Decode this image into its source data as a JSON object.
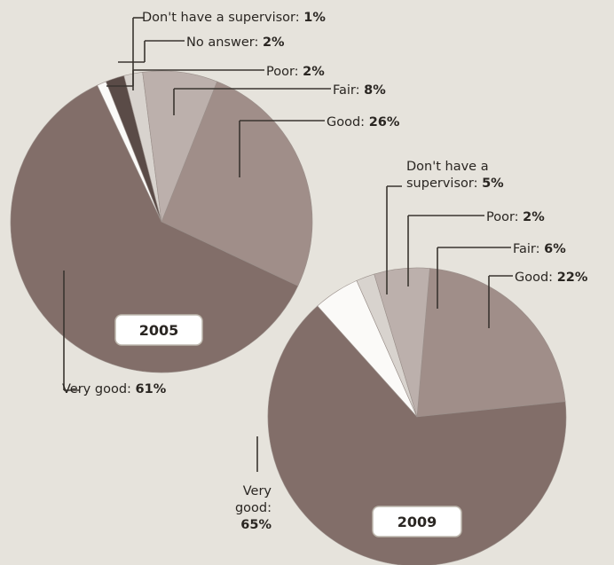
{
  "chart_data": [
    {
      "type": "pie",
      "title": "2005",
      "slices": [
        {
          "label": "Good",
          "value": 26,
          "color": "#a08e89"
        },
        {
          "label": "Very good",
          "value": 61,
          "color": "#826e69"
        },
        {
          "label": "Don't have a supervisor",
          "value": 1,
          "color": "#fbfaf8"
        },
        {
          "label": "No answer",
          "value": 2,
          "color": "#5a4b47"
        },
        {
          "label": "Poor",
          "value": 2,
          "color": "#d8d3ce"
        },
        {
          "label": "Fair",
          "value": 8,
          "color": "#bcb0ac"
        }
      ],
      "callouts": [
        {
          "text": "Don't have a supervisor: ",
          "pct": "1%"
        },
        {
          "text": "No answer: ",
          "pct": "2%"
        },
        {
          "text": "Poor: ",
          "pct": "2%"
        },
        {
          "text": "Fair: ",
          "pct": "8%"
        },
        {
          "text": "Good: ",
          "pct": "26%"
        },
        {
          "text": "Very good: ",
          "pct": "61%"
        }
      ]
    },
    {
      "type": "pie",
      "title": "2009",
      "slices": [
        {
          "label": "Good",
          "value": 22,
          "color": "#a08e89"
        },
        {
          "label": "Very good",
          "value": 65,
          "color": "#826e69"
        },
        {
          "label": "Don't have a supervisor",
          "value": 5,
          "color": "#fbfaf8"
        },
        {
          "label": "Poor",
          "value": 2,
          "color": "#d8d3ce"
        },
        {
          "label": "Fair",
          "value": 6,
          "color": "#bcb0ac"
        }
      ],
      "callouts": [
        {
          "lines": [
            "Don't have a",
            "supervisor: "
          ],
          "pct": "5%"
        },
        {
          "text": "Poor: ",
          "pct": "2%"
        },
        {
          "text": "Fair: ",
          "pct": "6%"
        },
        {
          "text": "Good: ",
          "pct": "22%"
        },
        {
          "lines": [
            "Very",
            "good:"
          ],
          "pct": "65%"
        }
      ]
    }
  ]
}
